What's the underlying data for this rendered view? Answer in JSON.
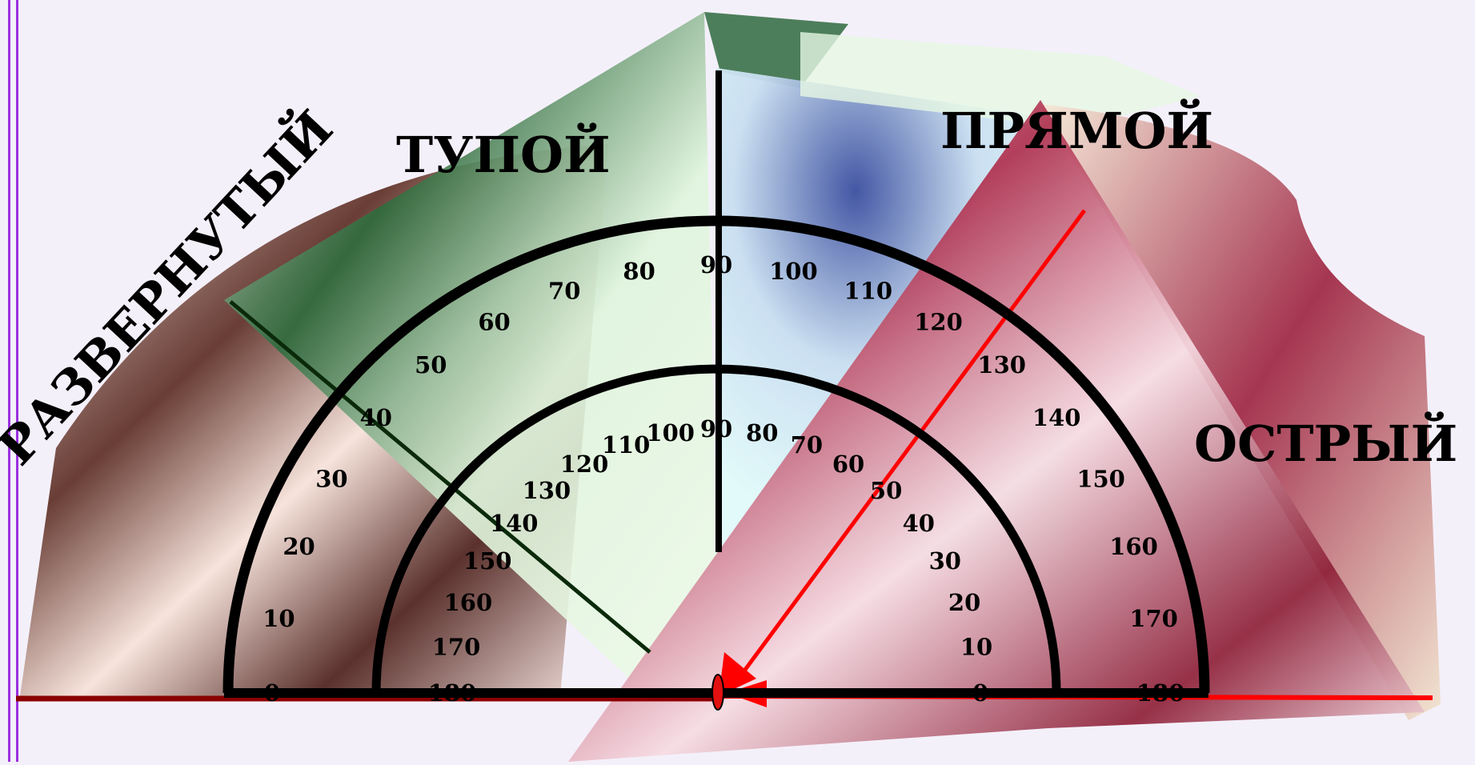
{
  "labels": {
    "obtuse": "ТУПОЙ",
    "right": "ПРЯМОЙ",
    "straight": "РАЗВЕРНУТЫЙ",
    "acute": "ОСТРЫЙ"
  },
  "protractor": {
    "outer_scale": [
      "0",
      "10",
      "20",
      "30",
      "40",
      "50",
      "60",
      "70",
      "80",
      "90",
      "100",
      "110",
      "120",
      "130",
      "140",
      "150",
      "160",
      "170",
      "180"
    ],
    "inner_scale": [
      "180",
      "170",
      "160",
      "150",
      "140",
      "130",
      "120",
      "110",
      "100",
      "90",
      "80",
      "70",
      "60",
      "50",
      "40",
      "30",
      "20",
      "10",
      "0"
    ]
  },
  "colors": {
    "obtuse_fill": "#2e6b3c",
    "right_fill": "#3b4fa0",
    "straight_fill": "#3a1a14",
    "acute_fill": "#b0304e",
    "highlight": "#ff0000",
    "outline": "#000000"
  }
}
